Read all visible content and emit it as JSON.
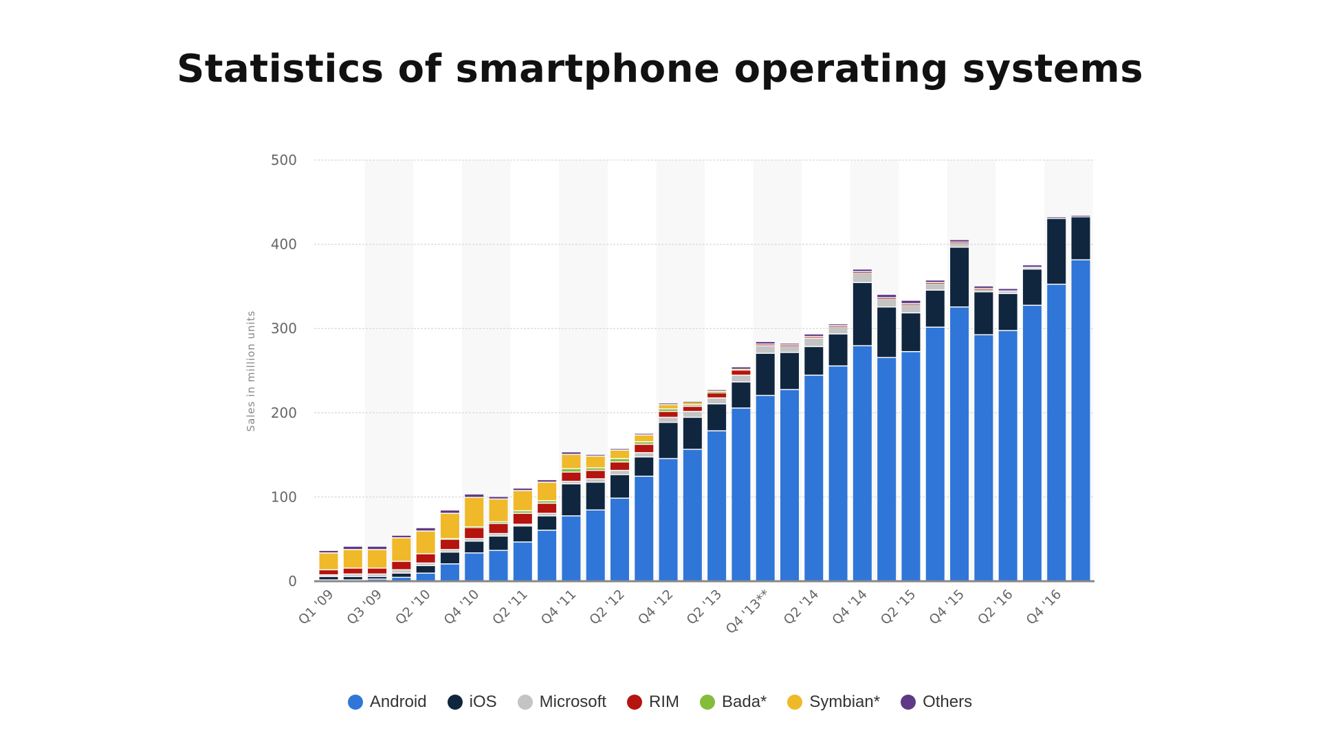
{
  "title": "Statistics of smartphone operating systems",
  "chart_data": {
    "type": "bar",
    "stacked": true,
    "title": "Statistics of smartphone operating systems",
    "xlabel": "",
    "ylabel": "Sales in million units",
    "ylim": [
      0,
      500
    ],
    "yticks": [
      0,
      100,
      200,
      300,
      400,
      500
    ],
    "grid": true,
    "legend_position": "bottom",
    "x_tick_labels": [
      "Q1 '09",
      "Q3 '09",
      "Q2 '10",
      "Q4 '10",
      "Q2 '11",
      "Q4 '11",
      "Q2 '12",
      "Q4 '12",
      "Q2 '13",
      "Q4 '13**",
      "Q2 '14",
      "Q4 '14",
      "Q2 '15",
      "Q4 '15",
      "Q2 '16",
      "Q4 '16"
    ],
    "series": [
      {
        "name": "Android",
        "color": "#2f76d8",
        "values": [
          1,
          1,
          2,
          4,
          9,
          20,
          33,
          36,
          46,
          60,
          77,
          84,
          98,
          124,
          145,
          156,
          178,
          205,
          220,
          227,
          244,
          255,
          279,
          265,
          272,
          301,
          325,
          292,
          297,
          327,
          352,
          381
        ]
      },
      {
        "name": "iOS",
        "color": "#10263f",
        "values": [
          4,
          4,
          3,
          5,
          9,
          14,
          14,
          17,
          19,
          17,
          38,
          33,
          28,
          23,
          43,
          38,
          32,
          31,
          50,
          44,
          34,
          38,
          75,
          60,
          46,
          44,
          71,
          51,
          44,
          43,
          78,
          51
        ]
      },
      {
        "name": "Microsoft",
        "color": "#c4c4c4",
        "values": [
          2,
          3,
          3,
          4,
          3,
          3,
          3,
          3,
          2,
          3,
          3,
          4,
          5,
          5,
          6,
          7,
          7,
          8,
          9,
          8,
          10,
          9,
          12,
          10,
          10,
          8,
          5,
          3,
          3,
          2,
          1,
          1
        ]
      },
      {
        "name": "RIM",
        "color": "#b5140f",
        "values": [
          6,
          7,
          7,
          10,
          11,
          12,
          13,
          12,
          13,
          12,
          11,
          10,
          10,
          10,
          7,
          6,
          6,
          6,
          2,
          1,
          2,
          1,
          1,
          1,
          1,
          1,
          1,
          1,
          0,
          0,
          0,
          0
        ]
      },
      {
        "name": "Bada*",
        "color": "#84bd3a",
        "values": [
          0,
          0,
          0,
          0,
          0,
          1,
          1,
          2,
          3,
          3,
          4,
          3,
          4,
          3,
          3,
          2,
          1,
          0,
          0,
          0,
          0,
          0,
          0,
          0,
          0,
          0,
          0,
          0,
          0,
          0,
          0,
          0
        ]
      },
      {
        "name": "Symbian*",
        "color": "#f0b92a",
        "values": [
          20,
          22,
          22,
          28,
          27,
          30,
          35,
          27,
          24,
          22,
          17,
          14,
          10,
          8,
          5,
          3,
          1,
          1,
          0,
          0,
          0,
          0,
          0,
          0,
          0,
          0,
          0,
          0,
          0,
          0,
          0,
          0
        ]
      },
      {
        "name": "Others",
        "color": "#5e3a86",
        "values": [
          3,
          4,
          4,
          3,
          4,
          4,
          4,
          3,
          3,
          3,
          3,
          2,
          2,
          2,
          2,
          1,
          2,
          3,
          3,
          2,
          3,
          2,
          3,
          4,
          4,
          3,
          3,
          3,
          3,
          3,
          1,
          1
        ]
      }
    ]
  }
}
